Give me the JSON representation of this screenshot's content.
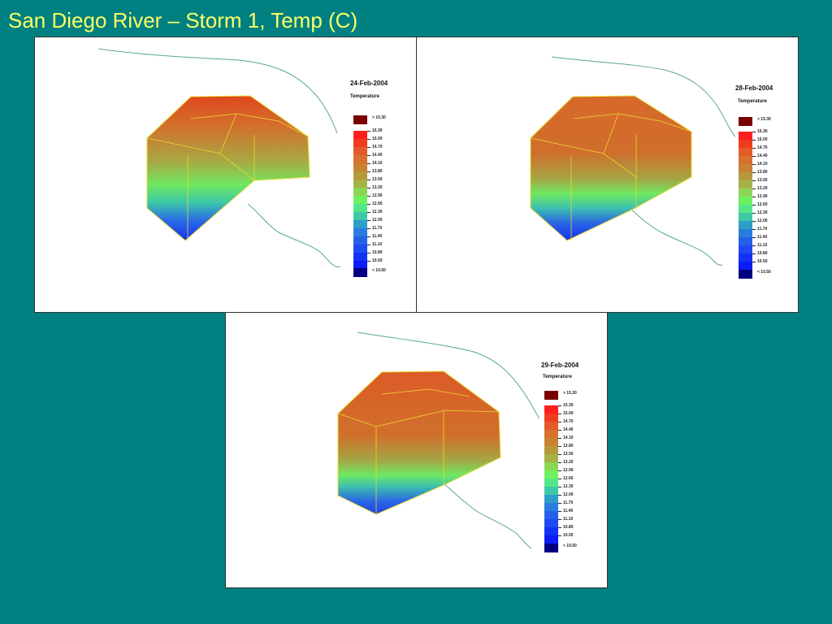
{
  "slide": {
    "title": "San Diego River – Storm 1, Temp (C)"
  },
  "legend": {
    "parameter": "Temperature",
    "over_label": "> 15.30",
    "under_label": "< 10.50",
    "over_color": "#7a0000",
    "under_color": "#000080",
    "steps": [
      {
        "value": "15.30",
        "color": "#ff1e1e"
      },
      {
        "value": "15.00",
        "color": "#f03c1e"
      },
      {
        "value": "14.70",
        "color": "#e45a28"
      },
      {
        "value": "14.40",
        "color": "#d8702e"
      },
      {
        "value": "14.10",
        "color": "#c88234"
      },
      {
        "value": "13.80",
        "color": "#b49a3c"
      },
      {
        "value": "13.50",
        "color": "#a6b248"
      },
      {
        "value": "13.20",
        "color": "#8cd656"
      },
      {
        "value": "12.90",
        "color": "#6ef060"
      },
      {
        "value": "12.60",
        "color": "#56e68a"
      },
      {
        "value": "12.30",
        "color": "#3ccaa6"
      },
      {
        "value": "12.00",
        "color": "#2e9ec8"
      },
      {
        "value": "11.70",
        "color": "#2a7ce0"
      },
      {
        "value": "11.40",
        "color": "#2660e8"
      },
      {
        "value": "11.10",
        "color": "#1e4af0"
      },
      {
        "value": "10.80",
        "color": "#1432f4"
      },
      {
        "value": "10.50",
        "color": "#0a1cf8"
      }
    ]
  },
  "panels": [
    {
      "date": "24-Feb-2004"
    },
    {
      "date": "28-Feb-2004"
    },
    {
      "date": "29-Feb-2004"
    }
  ]
}
